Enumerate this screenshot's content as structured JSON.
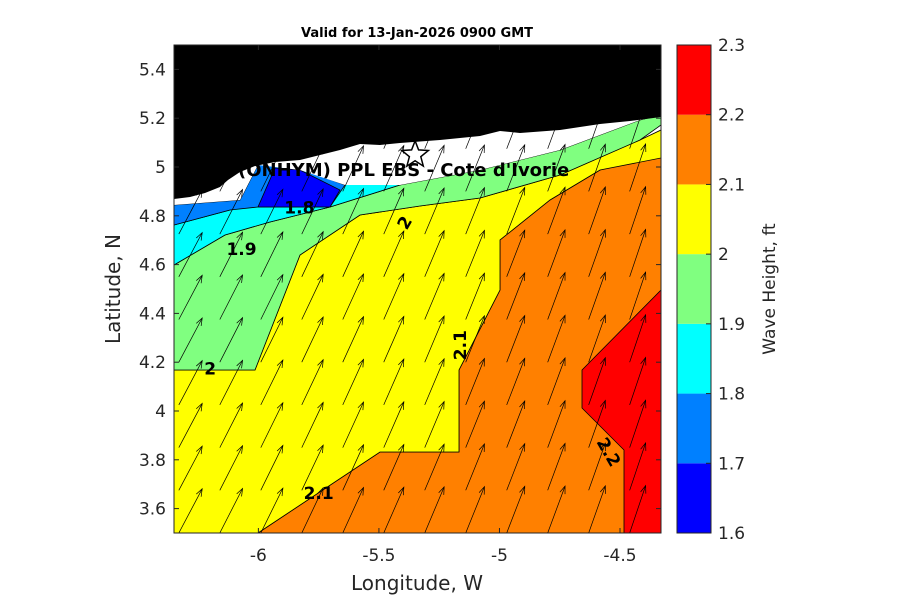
{
  "chart_data": {
    "type": "heatmap",
    "subtype": "filled-contour",
    "title": "Valid for 13-Jan-2026 0900 GMT",
    "xlabel": "Longitude, W",
    "ylabel": "Latitude, N",
    "xlim": [
      -6.35,
      -4.33
    ],
    "ylim": [
      3.5,
      5.5
    ],
    "xticks": [
      -6,
      -5.5,
      -5,
      -4.5
    ],
    "xtick_labels": [
      "-6",
      "-5.5",
      "-5",
      "-4.5"
    ],
    "yticks": [
      3.6,
      3.8,
      4.0,
      4.2,
      4.4,
      4.6,
      4.8,
      5.0,
      5.2,
      5.4
    ],
    "ytick_labels": [
      "3.6",
      "3.8",
      "4",
      "4.2",
      "4.4",
      "4.6",
      "4.8",
      "5",
      "5.2",
      "5.4"
    ],
    "colorbar": {
      "label": "Wave Height, ft",
      "levels": [
        1.6,
        1.7,
        1.8,
        1.9,
        2.0,
        2.1,
        2.2,
        2.3
      ],
      "level_labels": [
        "1.6",
        "1.7",
        "1.8",
        "1.9",
        "2",
        "2.1",
        "2.2",
        "2.3"
      ],
      "colors": [
        "#0000ff",
        "#0080ff",
        "#00ffff",
        "#80ff80",
        "#ffff00",
        "#ff8000",
        "#ff0000"
      ]
    },
    "land_color": "#000000",
    "coast_band_color": "#ffffff",
    "contour_labels": [
      {
        "text": "1.8",
        "lon": -5.83,
        "lat": 4.83,
        "angle": 0
      },
      {
        "text": "1.9",
        "lon": -6.07,
        "lat": 4.66,
        "angle": 0
      },
      {
        "text": "2",
        "lon": -5.39,
        "lat": 4.77,
        "angle": -60
      },
      {
        "text": "2",
        "lon": -6.2,
        "lat": 4.17,
        "angle": 0
      },
      {
        "text": "2.1",
        "lon": -5.16,
        "lat": 4.27,
        "angle": -90
      },
      {
        "text": "2.1",
        "lon": -5.75,
        "lat": 3.66,
        "angle": 0
      },
      {
        "text": "2.2",
        "lon": -4.55,
        "lat": 3.83,
        "angle": 60
      }
    ],
    "site": {
      "label": "(ONHYM) PPL EBS  - Cote d'Ivorie",
      "lon": -5.35,
      "lat": 5.05,
      "marker": "star"
    },
    "wind_vectors": {
      "direction": "north-north-east",
      "grid_dlon": 0.17,
      "grid_dlat": 0.175
    }
  }
}
